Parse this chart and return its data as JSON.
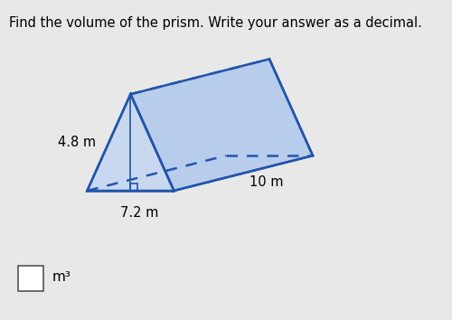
{
  "title": "Find the volume of the prism. Write your answer as a decimal.",
  "title_fontsize": 10.5,
  "background_color": "#e8e8e8",
  "prism_color": "#2255aa",
  "prism_fill_front": "#c8d8f0",
  "prism_fill_top": "#d8e8f8",
  "prism_fill_right": "#b8ccec",
  "label_48": "4.8 m",
  "label_72": "7.2 m",
  "label_10": "10 m",
  "unit_label": "m³"
}
